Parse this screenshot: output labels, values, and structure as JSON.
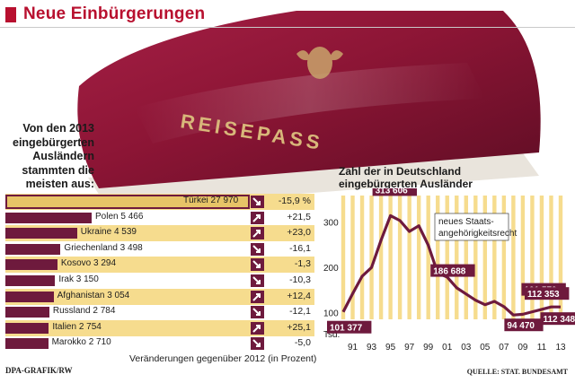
{
  "header": {
    "title": "Neue Einbürgerungen"
  },
  "passport": {
    "cover_text": "REISEPASS"
  },
  "intro": {
    "text": "Von den 2013 eingebürgerten Ausländern stammten die meisten aus:"
  },
  "bar_caption": "Veränderungen gegenüber 2012 (in Prozent)",
  "credit": "DPA-GRAFIK/RW",
  "source": "QUELLE: STAT. BUNDESAMT",
  "line_chart_title": "Zahl der in Deutschland eingebürgerten Ausländer",
  "colors": {
    "brand": "#b8102f",
    "bar": "#6e1a3d",
    "stripe": "#f6dc8e",
    "line_bar": "#f6dc8e",
    "line": "#6e1a3d"
  },
  "chart_data": [
    {
      "type": "bar",
      "orientation": "horizontal",
      "categories": [
        "Türkei",
        "Polen",
        "Ukraine",
        "Griechenland",
        "Kosovo",
        "Irak",
        "Afghanistan",
        "Russland",
        "Italien",
        "Marokko"
      ],
      "values": [
        27970,
        5466,
        4539,
        3498,
        3294,
        3150,
        3054,
        2784,
        2754,
        2710
      ],
      "value_labels": [
        "27 970",
        "5 466",
        "4 539",
        "3 498",
        "3 294",
        "3 150",
        "3 054",
        "2 784",
        "2 754",
        "2 710"
      ],
      "change_labels": [
        "-15,9 %",
        "+21,5",
        "+23,0",
        "-16,1",
        "-1,3",
        "-10,3",
        "+12,4",
        "-12,1",
        "+25,1",
        "-5,0"
      ],
      "change_values": [
        -15.9,
        21.5,
        23.0,
        -16.1,
        -1.3,
        -10.3,
        12.4,
        -12.1,
        25.1,
        -5.0
      ],
      "xlabel": "Veränderungen gegenüber 2012 (in Prozent)"
    },
    {
      "type": "line",
      "title": "Zahl der in Deutschland eingebürgerten Ausländer",
      "ylabel": "Tsd.",
      "ylim": [
        85,
        350
      ],
      "yticks": [
        100,
        200,
        300
      ],
      "x": [
        1990,
        1991,
        1992,
        1993,
        1994,
        1995,
        1996,
        1997,
        1998,
        1999,
        2000,
        2001,
        2002,
        2003,
        2004,
        2005,
        2006,
        2007,
        2008,
        2009,
        2010,
        2011,
        2012,
        2013
      ],
      "xtick_labels": [
        "91",
        "93",
        "95",
        "97",
        "99",
        "01",
        "03",
        "05",
        "07",
        "09",
        "11",
        "13"
      ],
      "values": [
        101.377,
        141.6,
        179.9,
        199.4,
        259.2,
        313.606,
        302.8,
        278.7,
        291.3,
        248.2,
        186.688,
        178.1,
        154.5,
        140.7,
        127.2,
        117.2,
        124.6,
        113.0,
        94.47,
        96.1,
        101.57,
        106.9,
        112.348,
        112.353
      ],
      "annotations": [
        {
          "year": 1990,
          "label": "101 377"
        },
        {
          "year": 1995,
          "label": "313 606"
        },
        {
          "year": 2000,
          "label": "186 688"
        },
        {
          "year": 2008,
          "label": "94 470"
        },
        {
          "year": 2010,
          "label": "101 570"
        },
        {
          "year": 2012,
          "label": "112 348"
        },
        {
          "year": 2013,
          "label": "112 353"
        }
      ],
      "event_label": "neues Staats-angehörigkeitsrecht"
    }
  ]
}
